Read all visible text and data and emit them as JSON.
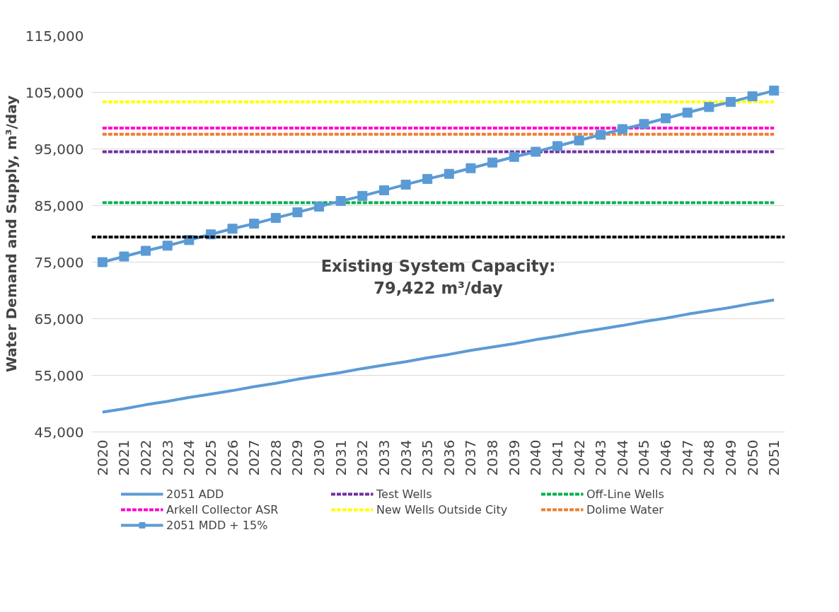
{
  "chart_data": {
    "type": "line",
    "ylabel": "Water Demand and Supply, m³/day",
    "categories": [
      "2020",
      "2021",
      "2022",
      "2023",
      "2024",
      "2025",
      "2026",
      "2027",
      "2028",
      "2029",
      "2030",
      "2031",
      "2032",
      "2033",
      "2034",
      "2035",
      "2036",
      "2037",
      "2038",
      "2039",
      "2040",
      "2041",
      "2042",
      "2043",
      "2044",
      "2045",
      "2046",
      "2047",
      "2048",
      "2049",
      "2050",
      "2051"
    ],
    "series": [
      {
        "name": "2051 ADD",
        "color": "#5b9bd5",
        "line_style": "solid",
        "marker": "none",
        "values": [
          48500,
          49100,
          49800,
          50400,
          51100,
          51700,
          52300,
          53000,
          53600,
          54300,
          54900,
          55500,
          56200,
          56800,
          57400,
          58100,
          58700,
          59400,
          60000,
          60600,
          61300,
          61900,
          62600,
          63200,
          63800,
          64500,
          65100,
          65800,
          66400,
          67000,
          67700,
          68300
        ]
      },
      {
        "name": "Test Wells",
        "color": "#7030a0",
        "line_style": "dashed",
        "marker": "none",
        "values": [
          94500,
          94500,
          94500,
          94500,
          94500,
          94500,
          94500,
          94500,
          94500,
          94500,
          94500,
          94500,
          94500,
          94500,
          94500,
          94500,
          94500,
          94500,
          94500,
          94500,
          94500,
          94500,
          94500,
          94500,
          94500,
          94500,
          94500,
          94500,
          94500,
          94500,
          94500,
          94500
        ]
      },
      {
        "name": "Off-Line Wells",
        "color": "#00b050",
        "line_style": "dashed",
        "marker": "none",
        "values": [
          85500,
          85500,
          85500,
          85500,
          85500,
          85500,
          85500,
          85500,
          85500,
          85500,
          85500,
          85500,
          85500,
          85500,
          85500,
          85500,
          85500,
          85500,
          85500,
          85500,
          85500,
          85500,
          85500,
          85500,
          85500,
          85500,
          85500,
          85500,
          85500,
          85500,
          85500,
          85500
        ]
      },
      {
        "name": "Arkell Collector ASR",
        "color": "#ff00cc",
        "line_style": "dashed",
        "marker": "none",
        "values": [
          98700,
          98700,
          98700,
          98700,
          98700,
          98700,
          98700,
          98700,
          98700,
          98700,
          98700,
          98700,
          98700,
          98700,
          98700,
          98700,
          98700,
          98700,
          98700,
          98700,
          98700,
          98700,
          98700,
          98700,
          98700,
          98700,
          98700,
          98700,
          98700,
          98700,
          98700,
          98700
        ]
      },
      {
        "name": "New Wells Outside City",
        "color": "#ffff00",
        "line_style": "dashed",
        "marker": "none",
        "values": [
          103300,
          103300,
          103300,
          103300,
          103300,
          103300,
          103300,
          103300,
          103300,
          103300,
          103300,
          103300,
          103300,
          103300,
          103300,
          103300,
          103300,
          103300,
          103300,
          103300,
          103300,
          103300,
          103300,
          103300,
          103300,
          103300,
          103300,
          103300,
          103300,
          103300,
          103300,
          103300
        ]
      },
      {
        "name": "Dolime Water",
        "color": "#ed7d31",
        "line_style": "dashed",
        "marker": "none",
        "values": [
          97600,
          97600,
          97600,
          97600,
          97600,
          97600,
          97600,
          97600,
          97600,
          97600,
          97600,
          97600,
          97600,
          97600,
          97600,
          97600,
          97600,
          97600,
          97600,
          97600,
          97600,
          97600,
          97600,
          97600,
          97600,
          97600,
          97600,
          97600,
          97600,
          97600,
          97600,
          97600
        ]
      },
      {
        "name": "2051 MDD + 15%",
        "color": "#5b9bd5",
        "line_style": "solid",
        "marker": "square",
        "values": [
          75000,
          76000,
          77000,
          77900,
          78900,
          79900,
          80900,
          81800,
          82800,
          83800,
          84800,
          85800,
          86700,
          87700,
          88700,
          89700,
          90600,
          91600,
          92600,
          93600,
          94500,
          95500,
          96500,
          97500,
          98500,
          99400,
          100400,
          101400,
          102400,
          103300,
          104300,
          105300
        ]
      }
    ],
    "ref_lines": [
      {
        "axis": "y",
        "value": 79422,
        "label": "Existing System Capacity:\n79,422 m³/day",
        "color": "#000000",
        "line_style": "dashed"
      }
    ],
    "ylim": [
      45000,
      115000
    ],
    "yticks": [
      {
        "value": 45000,
        "label": "45,000"
      },
      {
        "value": 55000,
        "label": "55,000"
      },
      {
        "value": 65000,
        "label": "65,000"
      },
      {
        "value": 75000,
        "label": "75,000"
      },
      {
        "value": 85000,
        "label": "85,000"
      },
      {
        "value": 95000,
        "label": "95,000"
      },
      {
        "value": 105000,
        "label": "105,000"
      },
      {
        "value": 115000,
        "label": "115,000"
      }
    ],
    "grid": "y",
    "legend": "bottom"
  }
}
